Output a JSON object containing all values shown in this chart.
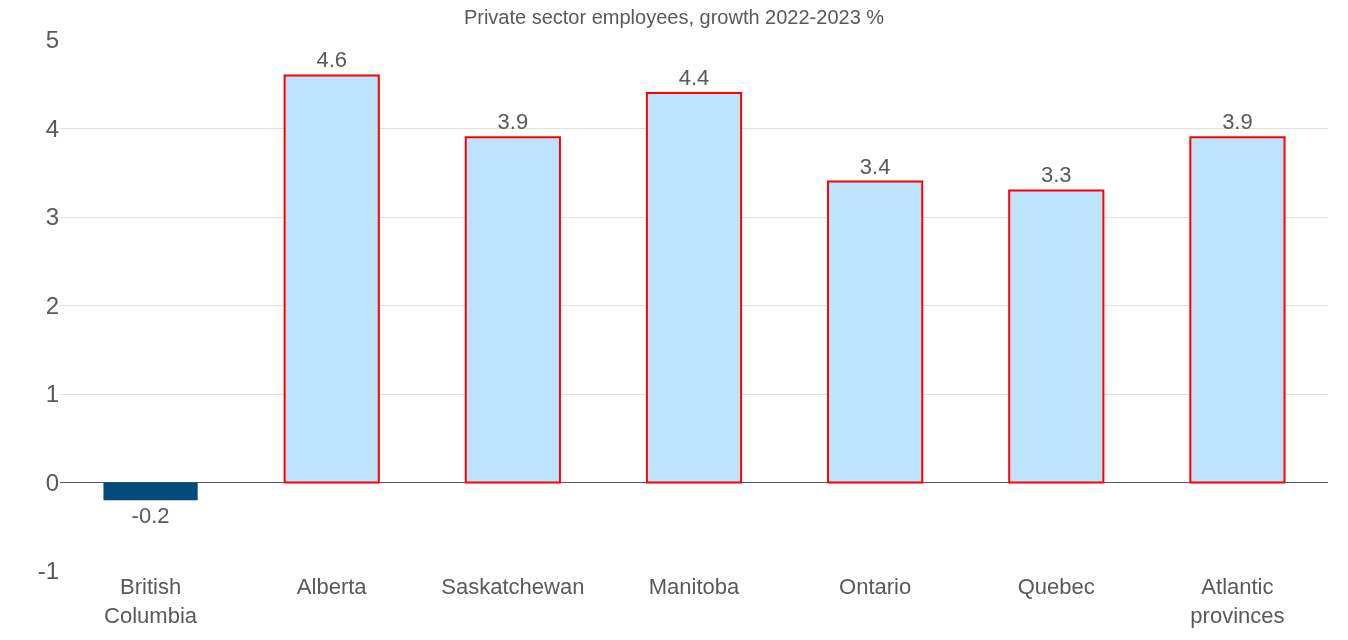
{
  "chart_data": {
    "type": "bar",
    "title": "Private sector employees, growth 2022-2023 %",
    "categories": [
      "British\nColumbia",
      "Alberta",
      "Saskatchewan",
      "Manitoba",
      "Ontario",
      "Quebec",
      "Atlantic\nprovinces"
    ],
    "values": [
      -0.2,
      4.6,
      3.9,
      4.4,
      3.4,
      3.3,
      3.9
    ],
    "colors": [
      "#004a7c",
      "#bde3ff",
      "#bde3ff",
      "#bde3ff",
      "#bde3ff",
      "#bde3ff",
      "#bde3ff"
    ],
    "ylim": [
      -1,
      5
    ],
    "yticks": [
      -1,
      0,
      1,
      2,
      3,
      4,
      5
    ],
    "grid": "y",
    "data_labels": true
  }
}
